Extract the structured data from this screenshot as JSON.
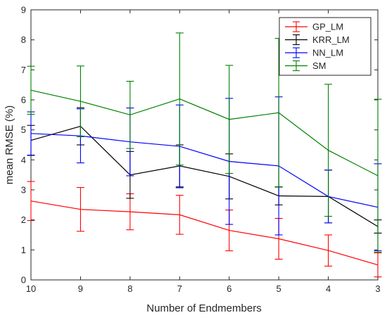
{
  "chart_data": {
    "type": "line",
    "title": "",
    "xlabel": "Number of Endmembers",
    "ylabel": "mean RMSE (%)",
    "x": [
      10,
      9,
      8,
      7,
      6,
      5,
      4,
      3
    ],
    "x_reversed": true,
    "xlim": [
      3,
      10
    ],
    "ylim": [
      0,
      9
    ],
    "xticks": [
      "10",
      "9",
      "8",
      "7",
      "6",
      "5",
      "4",
      "3"
    ],
    "yticks": [
      "0",
      "1",
      "2",
      "3",
      "4",
      "5",
      "6",
      "7",
      "8",
      "9"
    ],
    "grid": false,
    "legend_position": "top-right",
    "error_bars": true,
    "series": [
      {
        "name": "GP_LM",
        "color": "#ff0000",
        "values": [
          2.63,
          2.35,
          2.27,
          2.17,
          1.65,
          1.37,
          0.98,
          0.5
        ],
        "err": [
          0.65,
          0.73,
          0.6,
          0.65,
          0.68,
          0.68,
          0.52,
          0.4
        ]
      },
      {
        "name": "KRR_LM",
        "color": "#000000",
        "values": [
          4.65,
          5.12,
          3.5,
          3.8,
          3.45,
          2.8,
          2.78,
          1.78
        ],
        "err": [
          0.5,
          0.62,
          0.78,
          0.7,
          0.75,
          0.3,
          0.88,
          0.22
        ]
      },
      {
        "name": "NN_LM",
        "color": "#0000ff",
        "values": [
          4.88,
          4.8,
          4.6,
          4.45,
          3.95,
          3.8,
          2.78,
          2.42
        ],
        "err": [
          0.72,
          0.9,
          1.13,
          1.38,
          2.1,
          2.3,
          0.88,
          1.45
        ]
      },
      {
        "name": "SM",
        "color": "#008000",
        "values": [
          6.32,
          5.95,
          5.5,
          6.03,
          5.35,
          5.57,
          4.32,
          3.47
        ],
        "err": [
          0.8,
          1.18,
          1.12,
          2.2,
          1.8,
          2.48,
          2.2,
          2.55
        ]
      }
    ]
  }
}
